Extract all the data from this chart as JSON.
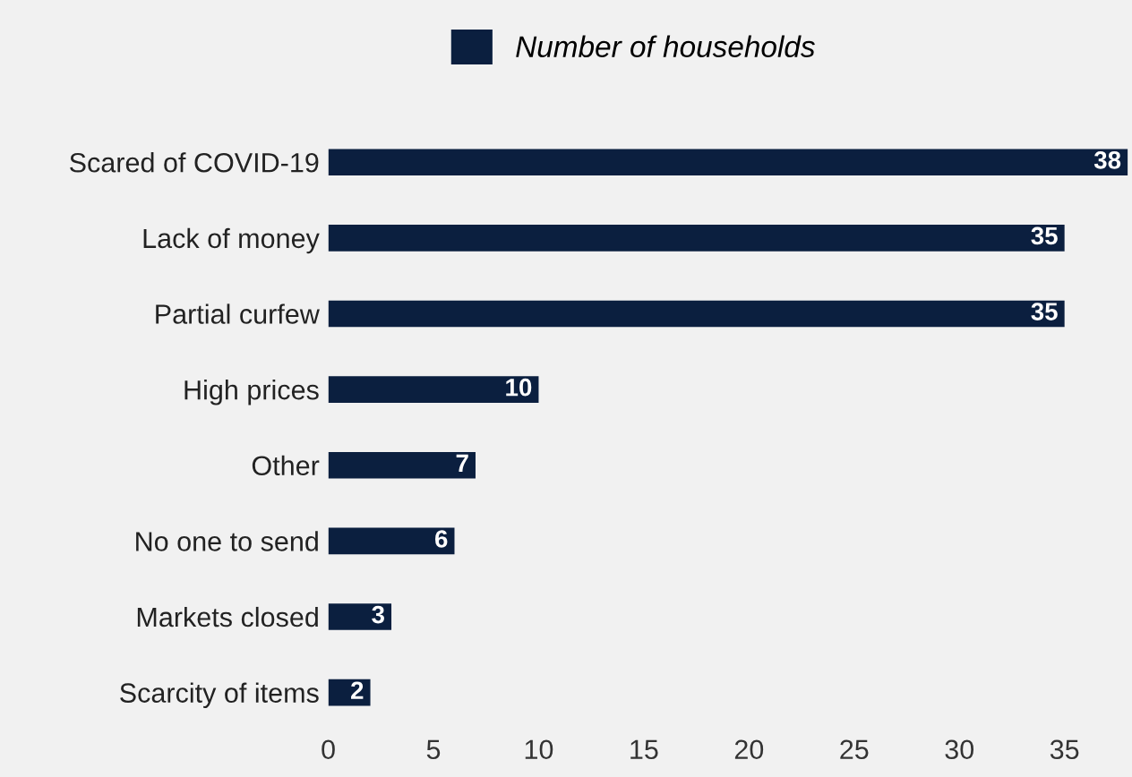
{
  "chart_data": {
    "type": "bar",
    "orientation": "horizontal",
    "categories": [
      "Scared of COVID-19",
      "Lack of money",
      "Partial curfew",
      "High prices",
      "Other",
      "No one to send",
      "Markets closed",
      "Scarcity of items"
    ],
    "series": [
      {
        "name": "Number of households",
        "color": "#0b1f3f",
        "values": [
          38,
          35,
          35,
          10,
          7,
          6,
          3,
          2
        ]
      }
    ],
    "xlim": [
      0,
      38.1
    ],
    "xticks": [
      0,
      5,
      10,
      15,
      20,
      25,
      30,
      35
    ],
    "data_labels": true,
    "legend": "top",
    "grid": false
  }
}
